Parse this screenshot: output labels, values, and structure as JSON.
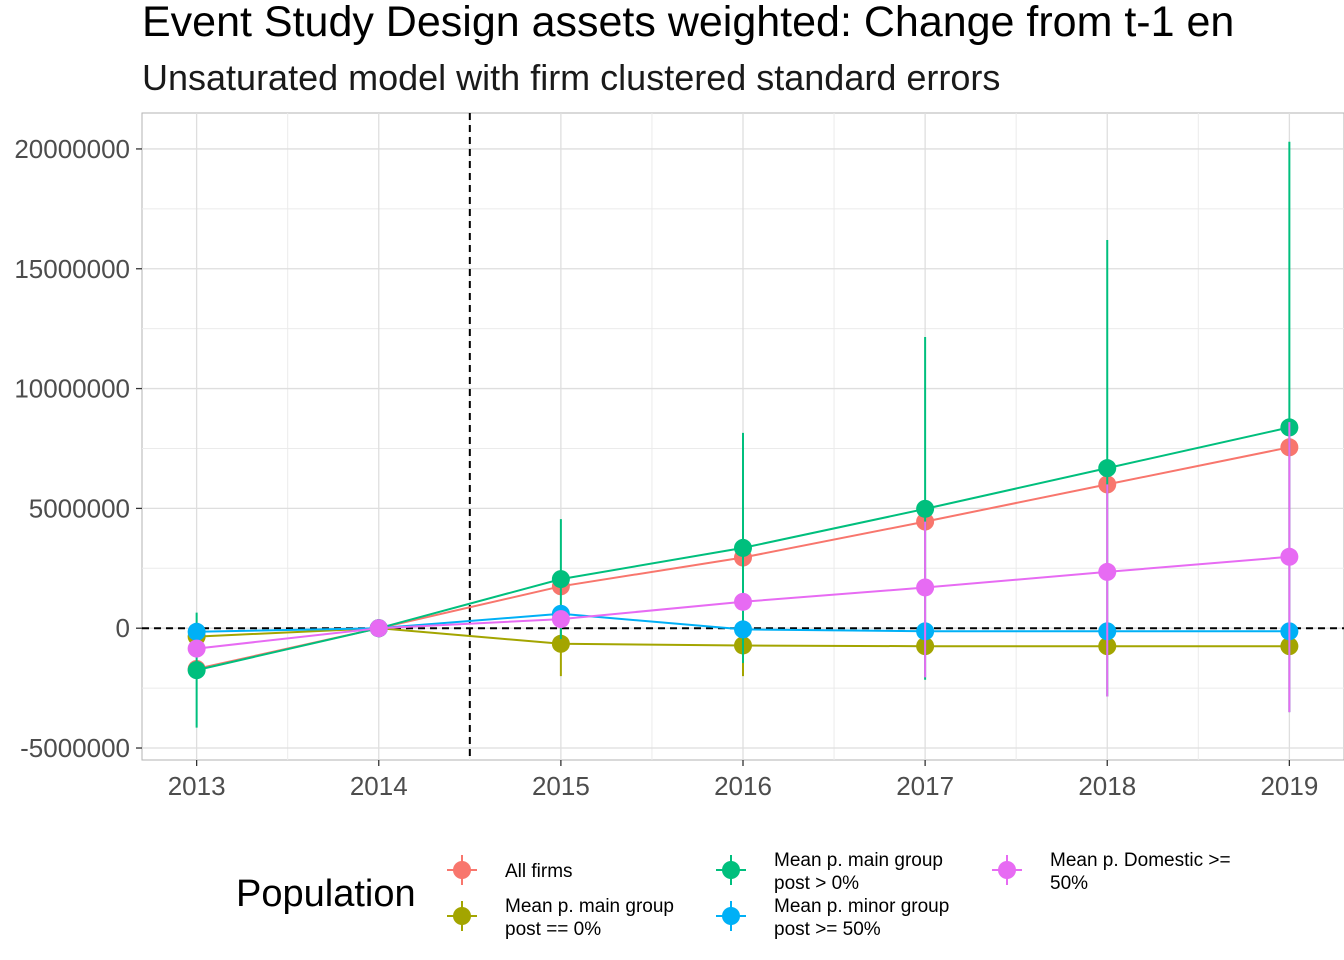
{
  "chart_data": {
    "type": "line",
    "title": "Event Study Design assets weighted: Change from t-1 en",
    "subtitle": "Unsaturated model with firm clustered standard errors",
    "xlabel": "",
    "ylabel": "",
    "x": [
      2013,
      2014,
      2015,
      2016,
      2017,
      2018,
      2019
    ],
    "x_ticks": [
      "2013",
      "2014",
      "2015",
      "2016",
      "2017",
      "2018",
      "2019"
    ],
    "xlim": [
      2012.7,
      2019.3
    ],
    "ylim": [
      -5500000,
      21500000
    ],
    "y_ticks": [
      -5000000,
      0,
      5000000,
      10000000,
      15000000,
      20000000
    ],
    "y_tick_labels": [
      "-5000000",
      "0",
      "5000000",
      "10000000",
      "15000000",
      "20000000"
    ],
    "grid": true,
    "reference_lines": {
      "vertical_x": 2014.5,
      "horizontal_y": 0,
      "style": "dashed"
    },
    "legend": {
      "title": "Population",
      "position": "bottom"
    },
    "series": [
      {
        "name": "All firms",
        "color": "#F8766D",
        "values": [
          -1700000,
          0,
          1750000,
          2950000,
          4450000,
          6000000,
          7550000
        ],
        "lower": [
          -1700000,
          0,
          1750000,
          2950000,
          4450000,
          6000000,
          7550000
        ],
        "upper": [
          -1700000,
          0,
          1750000,
          2950000,
          4450000,
          6000000,
          7550000
        ]
      },
      {
        "name": "Mean p. main group\npost == 0%",
        "color": "#A3A500",
        "values": [
          -350000,
          0,
          -650000,
          -720000,
          -750000,
          -750000,
          -750000
        ],
        "lower": [
          -350000,
          0,
          -2000000,
          -2000000,
          -750000,
          -750000,
          -750000
        ],
        "upper": [
          -350000,
          0,
          700000,
          560000,
          -750000,
          -750000,
          -750000
        ]
      },
      {
        "name": "Mean p. main group\npost > 0%",
        "color": "#00BF7D",
        "values": [
          -1750000,
          0,
          2050000,
          3350000,
          4980000,
          6680000,
          8380000
        ],
        "lower": [
          -4150000,
          0,
          -450000,
          -1450000,
          -2150000,
          -2850000,
          -3500000
        ],
        "upper": [
          650000,
          0,
          4550000,
          8150000,
          12150000,
          16200000,
          20300000
        ]
      },
      {
        "name": "Mean p. minor group\npost >= 50%",
        "color": "#00B0F6",
        "values": [
          -150000,
          0,
          600000,
          -50000,
          -130000,
          -130000,
          -130000
        ],
        "lower": [
          -150000,
          0,
          600000,
          -50000,
          -130000,
          -130000,
          -130000
        ],
        "upper": [
          -150000,
          0,
          600000,
          -50000,
          -130000,
          -130000,
          -130000
        ]
      },
      {
        "name": "Mean p. Domestic >=\n50%",
        "color": "#E76BF3",
        "values": [
          -850000,
          0,
          380000,
          1100000,
          1700000,
          2350000,
          2980000
        ],
        "lower": [
          -850000,
          0,
          380000,
          1100000,
          -2050000,
          -2850000,
          -3500000
        ],
        "upper": [
          -850000,
          0,
          380000,
          1100000,
          4450000,
          6000000,
          8600000
        ]
      }
    ]
  }
}
